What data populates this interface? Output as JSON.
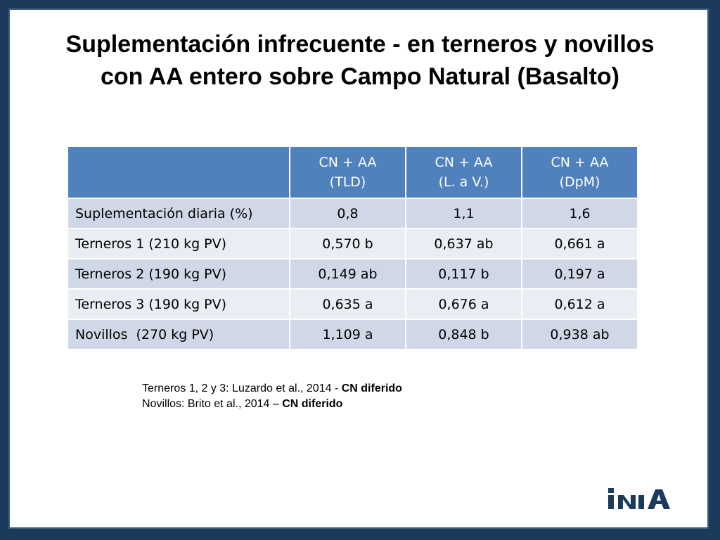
{
  "title": {
    "line1": "Suplementación infrecuente - en terneros y novillos",
    "line2": "con AA entero sobre Campo Natural (Basalto)"
  },
  "table": {
    "headers": [
      {
        "line1": "CN + AA",
        "line2": "(TLD)"
      },
      {
        "line1": "CN + AA",
        "line2": "(L. a V.)"
      },
      {
        "line1": "CN + AA",
        "line2": "(DpM)"
      }
    ],
    "rows": [
      {
        "label": "Suplementación diaria (%)",
        "values": [
          "0,8",
          "1,1",
          "1,6"
        ]
      },
      {
        "label": "Terneros 1 (210 kg PV)",
        "values": [
          "0,570 b",
          "0,637 ab",
          "0,661 a"
        ]
      },
      {
        "label": "Terneros 2 (190 kg PV)",
        "values": [
          "0,149 ab",
          "0,117 b",
          "0,197 a"
        ]
      },
      {
        "label": "Terneros 3 (190 kg PV)",
        "values": [
          "0,635 a",
          "0,676 a",
          "0,612 a"
        ]
      },
      {
        "label": "Novillos  (270 kg PV)",
        "values": [
          "1,109 a",
          "0,848 b",
          "0,938 ab"
        ]
      }
    ]
  },
  "references": {
    "ref1_text": "Terneros 1, 2 y 3: Luzardo et al., 2014 - ",
    "ref1_bold": "CN diferido",
    "ref2_text": "Novillos: Brito et al., 2014 – ",
    "ref2_bold": "CN diferido"
  },
  "logo": {
    "text": "INIA",
    "color": "#1c3a5c"
  },
  "colors": {
    "header": "#4f81bd",
    "row_odd": "#d0d8e8",
    "row_even": "#e9edf4",
    "frame": "#1c3a5c"
  }
}
